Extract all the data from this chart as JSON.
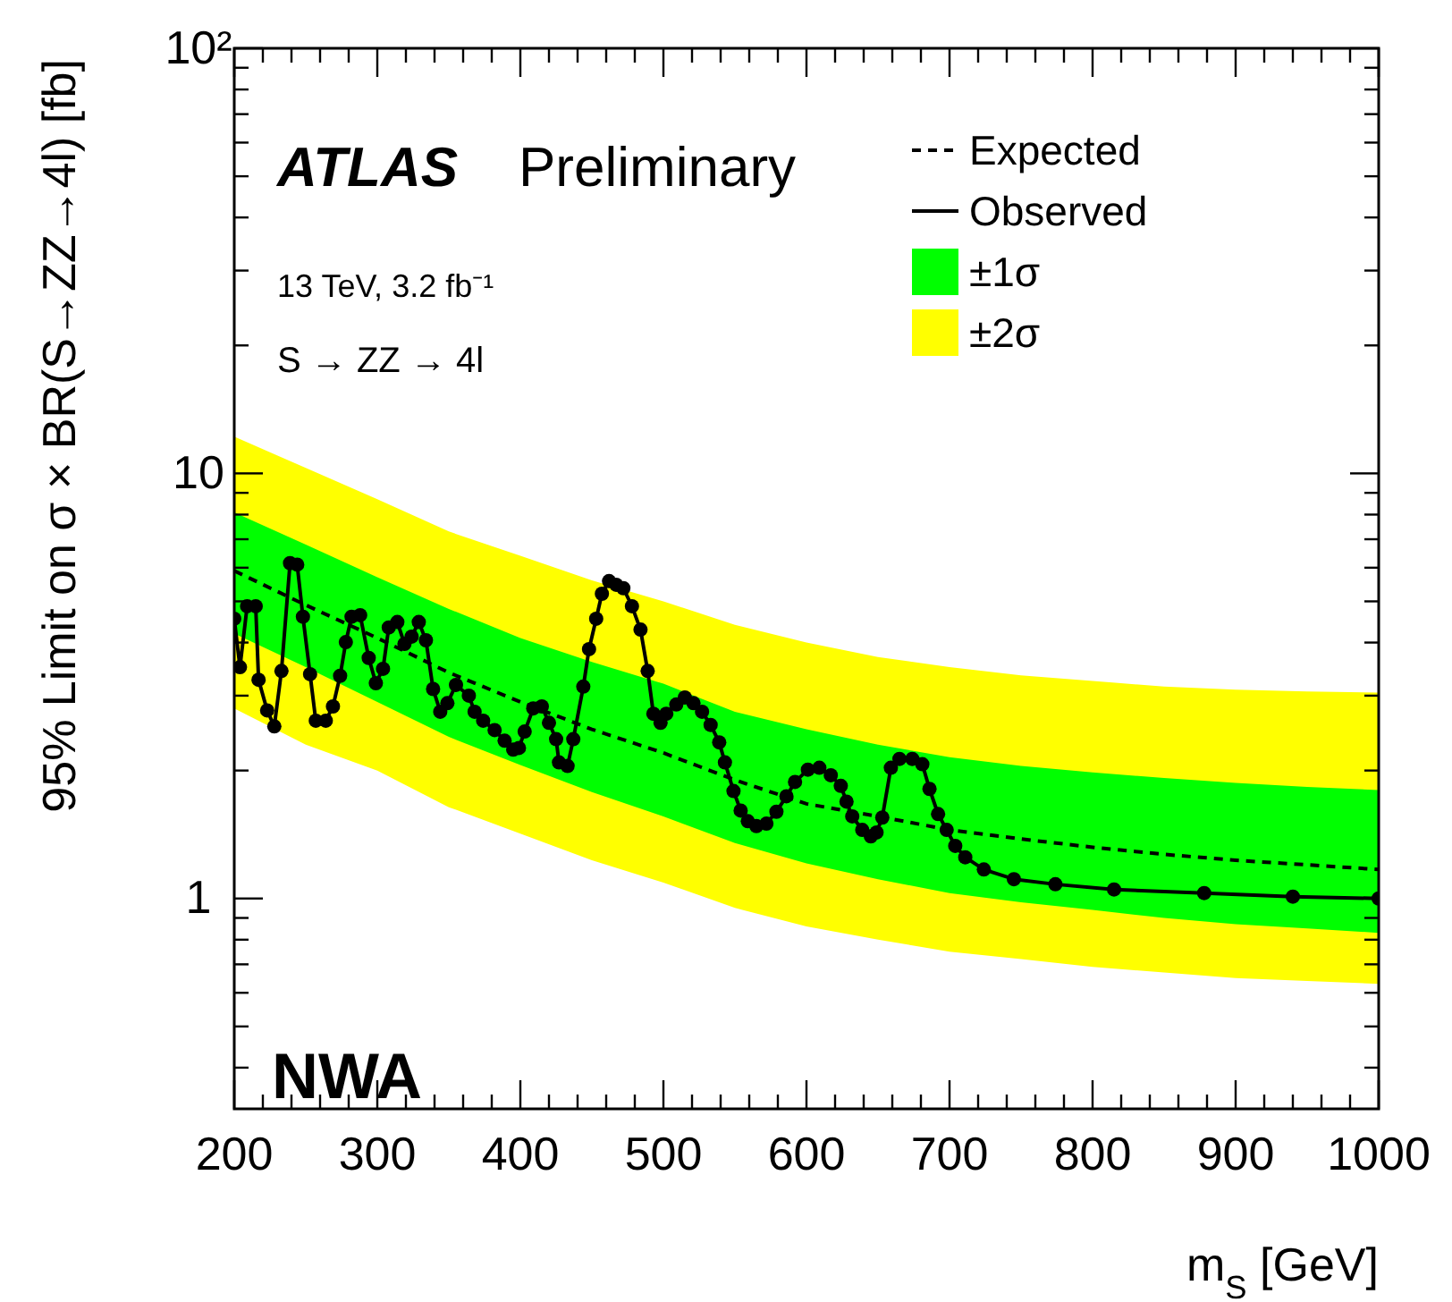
{
  "chart_data": {
    "type": "line",
    "xlabel": "m$_{S}$ [GeV]",
    "ylabel": "95% Limit on σ × BR(S→ZZ→4l) [fb]",
    "annotations": [
      "ATLAS",
      "Preliminary",
      "13 TeV, 3.2 fb⁻¹",
      "S → ZZ → 4l",
      "NWA"
    ],
    "log": "y",
    "legend": "top right",
    "xlim": [
      200,
      1000
    ],
    "ylim": [
      0.32,
      100
    ],
    "xticks": [
      200,
      {
        "value": 220,
        "label": null
      },
      {
        "value": 240,
        "label": null
      },
      {
        "value": 260,
        "label": null
      },
      {
        "value": 280,
        "label": null
      },
      300,
      {
        "value": 320,
        "label": null
      },
      {
        "value": 340,
        "label": null
      },
      {
        "value": 360,
        "label": null
      },
      {
        "value": 380,
        "label": null
      },
      400,
      {
        "value": 420,
        "label": null
      },
      {
        "value": 440,
        "label": null
      },
      {
        "value": 460,
        "label": null
      },
      {
        "value": 480,
        "label": null
      },
      500,
      {
        "value": 520,
        "label": null
      },
      {
        "value": 540,
        "label": null
      },
      {
        "value": 560,
        "label": null
      },
      {
        "value": 580,
        "label": null
      },
      600,
      {
        "value": 620,
        "label": null
      },
      {
        "value": 640,
        "label": null
      },
      {
        "value": 660,
        "label": null
      },
      {
        "value": 680,
        "label": null
      },
      700,
      {
        "value": 720,
        "label": null
      },
      {
        "value": 740,
        "label": null
      },
      {
        "value": 760,
        "label": null
      },
      {
        "value": 780,
        "label": null
      },
      800,
      {
        "value": 820,
        "label": null
      },
      {
        "value": 840,
        "label": null
      },
      {
        "value": 860,
        "label": null
      },
      {
        "value": 880,
        "label": null
      },
      900,
      {
        "value": 920,
        "label": null
      },
      {
        "value": 940,
        "label": null
      },
      {
        "value": 960,
        "label": null
      },
      {
        "value": 980,
        "label": null
      },
      1000
    ],
    "yticks": [
      {
        "value": 0.4,
        "label": null
      },
      {
        "value": 0.5,
        "label": null
      },
      {
        "value": 0.6,
        "label": null
      },
      {
        "value": 0.7,
        "label": null
      },
      {
        "value": 0.8,
        "label": null
      },
      {
        "value": 0.9,
        "label": null
      },
      1,
      {
        "value": 2,
        "label": null
      },
      {
        "value": 3,
        "label": null
      },
      {
        "value": 4,
        "label": null
      },
      {
        "value": 5,
        "label": null
      },
      {
        "value": 6,
        "label": null
      },
      {
        "value": 7,
        "label": null
      },
      {
        "value": 8,
        "label": null
      },
      {
        "value": 9,
        "label": null
      },
      10,
      {
        "value": 20,
        "label": null
      },
      {
        "value": 30,
        "label": null
      },
      {
        "value": 40,
        "label": null
      },
      {
        "value": 50,
        "label": null
      },
      {
        "value": 60,
        "label": null
      },
      {
        "value": 70,
        "label": null
      },
      {
        "value": 80,
        "label": null
      },
      {
        "value": 90,
        "label": null
      },
      {
        "value": 100,
        "label": "10²"
      }
    ],
    "series": [
      {
        "name": "±2σ",
        "type": "area",
        "color": "#ffff00",
        "x": [
          200,
          250,
          300,
          350,
          400,
          450,
          500,
          550,
          600,
          650,
          700,
          750,
          800,
          850,
          900,
          950,
          1000
        ],
        "values": [
          null,
          null,
          null,
          null,
          null,
          null,
          null,
          null,
          null,
          null,
          null,
          null,
          null,
          null,
          null,
          null,
          null
        ],
        "lower": [
          2.8,
          2.3,
          2.0,
          1.64,
          1.42,
          1.23,
          1.09,
          0.95,
          0.86,
          0.8,
          0.75,
          0.72,
          0.69,
          0.67,
          0.65,
          0.64,
          0.63
        ],
        "upper": [
          12.2,
          10.3,
          8.7,
          7.3,
          6.4,
          5.6,
          5.0,
          4.4,
          4.0,
          3.7,
          3.5,
          3.35,
          3.25,
          3.15,
          3.1,
          3.07,
          3.05
        ]
      },
      {
        "name": "±1σ",
        "type": "area",
        "color": "#00ff00",
        "x": [
          200,
          250,
          300,
          350,
          400,
          450,
          500,
          550,
          600,
          650,
          700,
          750,
          800,
          850,
          900,
          950,
          1000
        ],
        "values": [
          null,
          null,
          null,
          null,
          null,
          null,
          null,
          null,
          null,
          null,
          null,
          null,
          null,
          null,
          null,
          null,
          null
        ],
        "lower": [
          4.2,
          3.5,
          2.9,
          2.4,
          2.06,
          1.78,
          1.56,
          1.35,
          1.21,
          1.11,
          1.03,
          0.98,
          0.94,
          0.9,
          0.87,
          0.85,
          0.83
        ],
        "upper": [
          8.1,
          6.8,
          5.7,
          4.8,
          4.1,
          3.6,
          3.2,
          2.75,
          2.5,
          2.3,
          2.15,
          2.05,
          1.98,
          1.92,
          1.87,
          1.83,
          1.8
        ]
      },
      {
        "name": "Expected",
        "line_style": "dashed",
        "marker": "none",
        "color": "#000000",
        "x": [
          200,
          250,
          300,
          350,
          400,
          450,
          500,
          550,
          600,
          650,
          700,
          750,
          800,
          850,
          900,
          950,
          1000
        ],
        "values": [
          5.9,
          4.9,
          4.1,
          3.4,
          2.9,
          2.5,
          2.2,
          1.9,
          1.67,
          1.56,
          1.45,
          1.38,
          1.32,
          1.27,
          1.23,
          1.2,
          1.17
        ]
      },
      {
        "name": "Observed",
        "line_style": "solid",
        "marker": "circle",
        "color": "#000000",
        "x": [
          200,
          204,
          209,
          215,
          217,
          223,
          228,
          233,
          239,
          244,
          248,
          253,
          257,
          264,
          269,
          274,
          278,
          282,
          288,
          294,
          299,
          304,
          308,
          314,
          319,
          324,
          329,
          334,
          339,
          344,
          349,
          355,
          364,
          368,
          374,
          382,
          389,
          395,
          399,
          403,
          409,
          415,
          420,
          425,
          427,
          433,
          437,
          444,
          448,
          453,
          457,
          462,
          467,
          472,
          478,
          484,
          489,
          493,
          498,
          502,
          509,
          515,
          521,
          527,
          533,
          539,
          543,
          549,
          554,
          559,
          565,
          572,
          579,
          586,
          592,
          601,
          609,
          617,
          624,
          628,
          632,
          639,
          645,
          649,
          653,
          659,
          665,
          674,
          681,
          686,
          692,
          698,
          704,
          711,
          724,
          745,
          774,
          815,
          878,
          940,
          1000
        ],
        "values": [
          4.55,
          3.5,
          4.87,
          4.87,
          3.27,
          2.77,
          2.54,
          3.43,
          6.15,
          6.1,
          4.6,
          3.37,
          2.62,
          2.62,
          2.83,
          3.34,
          4.01,
          4.6,
          4.64,
          3.68,
          3.21,
          3.47,
          4.34,
          4.47,
          3.97,
          4.13,
          4.47,
          4.05,
          3.11,
          2.75,
          2.88,
          3.18,
          3.0,
          2.75,
          2.62,
          2.49,
          2.35,
          2.24,
          2.26,
          2.47,
          2.8,
          2.83,
          2.59,
          2.37,
          2.09,
          2.05,
          2.37,
          3.15,
          3.86,
          4.55,
          5.21,
          5.58,
          5.47,
          5.37,
          4.87,
          4.29,
          3.43,
          2.72,
          2.59,
          2.72,
          2.86,
          2.97,
          2.88,
          2.75,
          2.56,
          2.33,
          2.09,
          1.79,
          1.61,
          1.52,
          1.48,
          1.5,
          1.6,
          1.74,
          1.88,
          2.01,
          2.03,
          1.95,
          1.84,
          1.69,
          1.56,
          1.45,
          1.4,
          1.43,
          1.55,
          2.03,
          2.13,
          2.13,
          2.07,
          1.81,
          1.58,
          1.45,
          1.33,
          1.25,
          1.17,
          1.11,
          1.08,
          1.05,
          1.03,
          1.01,
          1.0
        ]
      }
    ]
  }
}
